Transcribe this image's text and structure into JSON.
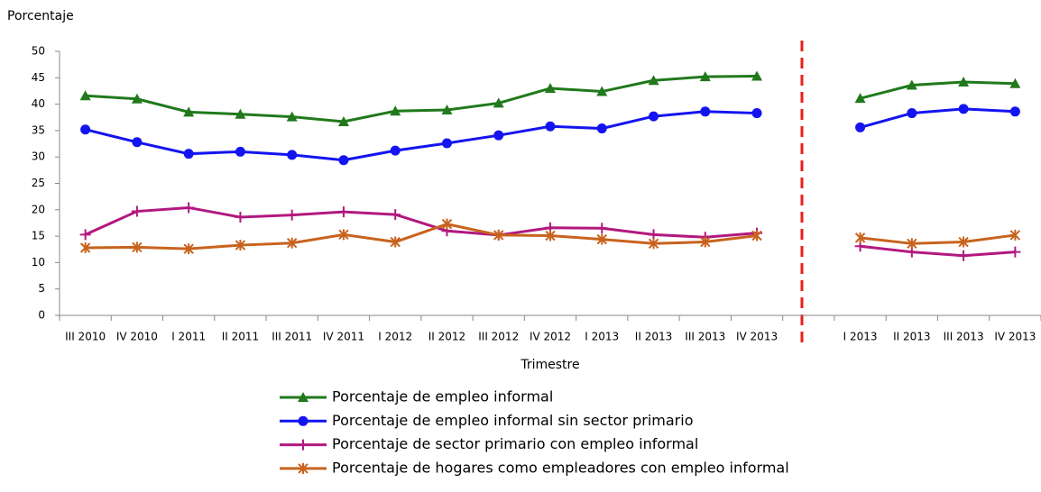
{
  "chart_data": {
    "type": "line",
    "y_axis_label": "Porcentaje",
    "x_axis_label": "Trimestre",
    "categories": [
      "III 2010",
      "IV 2010",
      "I 2011",
      "II 2011",
      "III 2011",
      "IV 2011",
      "I 2012",
      "II 2012",
      "III 2012",
      "IV 2012",
      "I 2013",
      "II 2013",
      "III 2013",
      "IV 2013",
      null,
      "I 2013",
      "II 2013",
      "III 2013",
      "IV 2013"
    ],
    "series": [
      {
        "name": "Porcentaje de empleo informal",
        "color": "#21791c",
        "marker": "triangle",
        "values": [
          41.6,
          41.0,
          38.5,
          38.1,
          37.6,
          36.7,
          38.7,
          38.9,
          40.2,
          43.0,
          42.4,
          44.5,
          45.2,
          45.3,
          null,
          41.1,
          43.6,
          44.2,
          43.9
        ]
      },
      {
        "name": "Porcentaje de empleo informal sin sector primario",
        "color": "#1414f0",
        "marker": "circle",
        "values": [
          35.2,
          32.8,
          30.6,
          31.0,
          30.4,
          29.4,
          31.2,
          32.6,
          34.1,
          35.8,
          35.4,
          37.7,
          38.6,
          38.3,
          null,
          35.6,
          38.3,
          39.1,
          38.6
        ]
      },
      {
        "name": "Porcentaje de sector primario con empleo informal",
        "color": "#b2187f",
        "marker": "plus",
        "values": [
          15.3,
          19.7,
          20.4,
          18.6,
          19.0,
          19.6,
          19.1,
          16.0,
          15.2,
          16.6,
          16.5,
          15.3,
          14.8,
          15.6,
          null,
          13.1,
          12.0,
          11.3,
          12.0
        ]
      },
      {
        "name": "Porcentaje de hogares como empleadores con empleo informal",
        "color": "#c8631e",
        "marker": "asterisk",
        "values": [
          12.8,
          12.9,
          12.6,
          13.3,
          13.7,
          15.3,
          13.9,
          17.3,
          15.2,
          15.1,
          14.4,
          13.6,
          13.9,
          15.1,
          null,
          14.7,
          13.6,
          13.9,
          15.2
        ]
      }
    ],
    "ylim": [
      0,
      50
    ],
    "yticks": [
      0,
      5,
      10,
      15,
      20,
      25,
      30,
      35,
      40,
      45,
      50
    ],
    "grid": false
  }
}
